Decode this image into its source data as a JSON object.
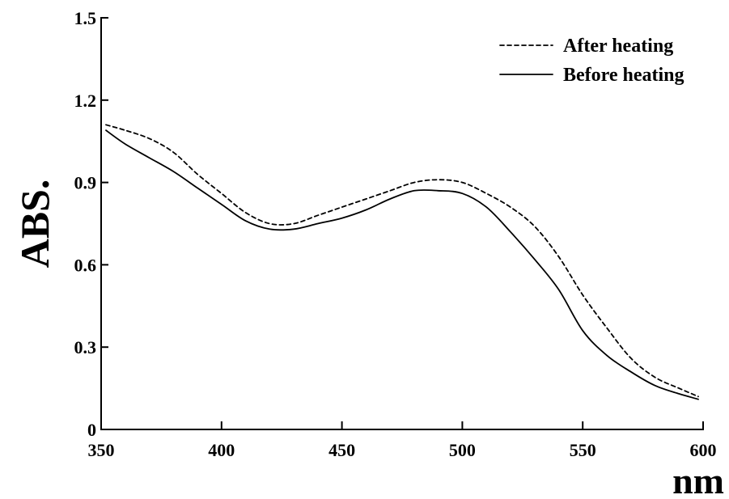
{
  "chart_data": {
    "type": "line",
    "xlabel": "nm",
    "ylabel": "ABS.",
    "xlim": [
      350,
      600
    ],
    "ylim": [
      0,
      1.5
    ],
    "x_ticks": [
      350,
      400,
      450,
      500,
      550,
      600
    ],
    "y_ticks": [
      0,
      0.3,
      0.6,
      0.9,
      1.2,
      1.5
    ],
    "x_tick_labels": [
      "350",
      "400",
      "450",
      "500",
      "550",
      "600"
    ],
    "y_tick_labels": [
      "0",
      "0.3",
      "0.6",
      "0.9",
      "1.2",
      "1.5"
    ],
    "grid": false,
    "legend_position": "top-right",
    "series": [
      {
        "name": "After heating",
        "line_style": "dashed",
        "color": "#000000",
        "x": [
          352,
          360,
          370,
          380,
          390,
          400,
          410,
          420,
          430,
          440,
          450,
          460,
          470,
          480,
          490,
          500,
          510,
          520,
          530,
          540,
          550,
          560,
          570,
          580,
          590,
          598
        ],
        "y": [
          1.11,
          1.09,
          1.06,
          1.01,
          0.93,
          0.86,
          0.79,
          0.75,
          0.75,
          0.78,
          0.81,
          0.84,
          0.87,
          0.9,
          0.91,
          0.9,
          0.86,
          0.81,
          0.74,
          0.63,
          0.49,
          0.37,
          0.26,
          0.19,
          0.15,
          0.12
        ]
      },
      {
        "name": "Before heating",
        "line_style": "solid",
        "color": "#000000",
        "x": [
          352,
          360,
          370,
          380,
          390,
          400,
          410,
          420,
          430,
          440,
          450,
          460,
          470,
          480,
          490,
          500,
          510,
          520,
          530,
          540,
          550,
          560,
          570,
          580,
          590,
          598
        ],
        "y": [
          1.09,
          1.04,
          0.99,
          0.94,
          0.88,
          0.82,
          0.76,
          0.73,
          0.73,
          0.75,
          0.77,
          0.8,
          0.84,
          0.87,
          0.87,
          0.86,
          0.81,
          0.72,
          0.62,
          0.51,
          0.36,
          0.27,
          0.21,
          0.16,
          0.13,
          0.11
        ]
      }
    ]
  }
}
